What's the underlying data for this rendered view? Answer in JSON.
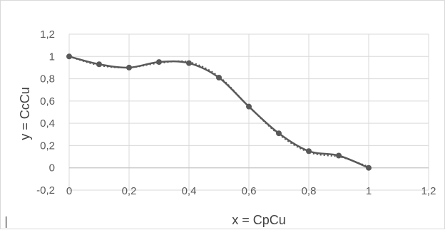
{
  "chart_data": {
    "type": "line",
    "title": "",
    "xlabel": "x = CpCu",
    "ylabel": "y = CcCu",
    "xlim": [
      0,
      1.2
    ],
    "ylim": [
      -0.2,
      1.2
    ],
    "x_ticks": [
      "0",
      "0,2",
      "0,4",
      "0,6",
      "0,8",
      "1",
      "1,2"
    ],
    "y_ticks": [
      "-0,2",
      "0",
      "0,2",
      "0,4",
      "0,6",
      "0,8",
      "1",
      "1,2"
    ],
    "grid": true,
    "series": [
      {
        "style": "solid-with-markers",
        "color": "#595959",
        "x": [
          0,
          0.1,
          0.2,
          0.3,
          0.4,
          0.5,
          0.6,
          0.7,
          0.8,
          0.9,
          1.0
        ],
        "y": [
          1.0,
          0.93,
          0.9,
          0.95,
          0.94,
          0.81,
          0.55,
          0.31,
          0.15,
          0.11,
          0.0
        ]
      },
      {
        "style": "dotted",
        "color": "#595959",
        "x": [
          0,
          0.1,
          0.2,
          0.3,
          0.4,
          0.5,
          0.6,
          0.7,
          0.8,
          0.9,
          0.95,
          1.0
        ],
        "y": [
          1.0,
          0.92,
          0.9,
          0.94,
          0.95,
          0.82,
          0.55,
          0.3,
          0.14,
          0.1,
          0.06,
          0.01
        ]
      }
    ]
  }
}
